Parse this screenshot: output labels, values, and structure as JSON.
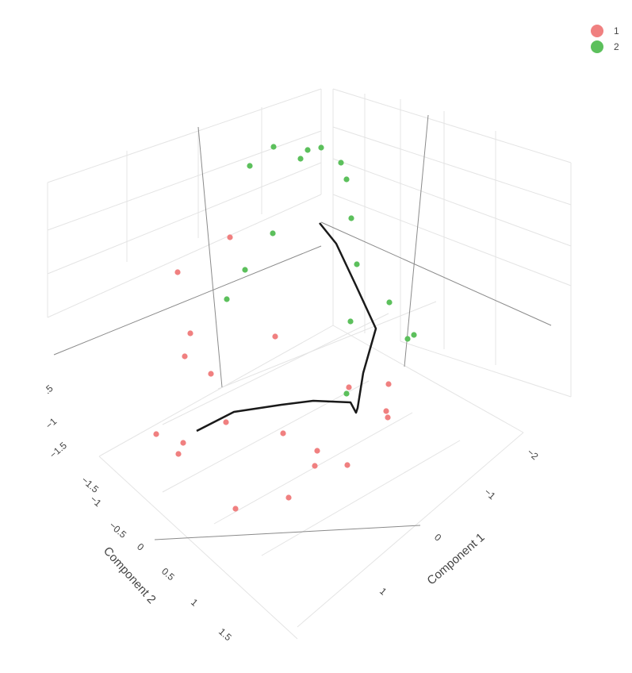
{
  "chart_data": {
    "type": "scatter3d",
    "xlabel": "Component 1",
    "ylabel": "Component 2",
    "zlabel": "",
    "x_ticks": [
      "−2",
      "−1",
      "0",
      "1"
    ],
    "y_ticks": [
      "−1.5",
      "−1",
      "−0.5",
      "0",
      "0.5",
      "1",
      "1.5"
    ],
    "z_ticks": [
      ".5",
      "−1",
      "−1.5"
    ],
    "legend_placement": "top-right",
    "colors": {
      "1": "#f08080",
      "2": "#5cc05c",
      "trajectory": "#1a1a1a"
    },
    "series": [
      {
        "name": "1",
        "color": "#f08080"
      },
      {
        "name": "2",
        "color": "#5cc05c"
      }
    ]
  }
}
